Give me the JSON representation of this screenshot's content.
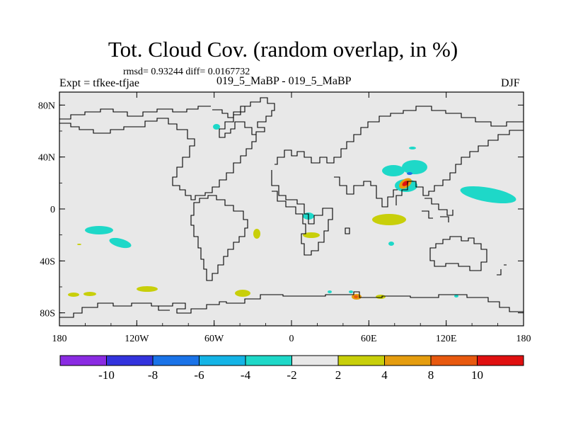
{
  "header": {
    "title": "Tot. Cloud Cov. (random overlap, in %)",
    "stats": "rmsd= 0.93244 diff= 0.0167732",
    "experiment": "Expt = tfkee-tfjae",
    "cases": "019_5_MaBP - 019_5_MaBP",
    "season": "DJF"
  },
  "map": {
    "projection": "cylindrical equidistant",
    "lon_range": [
      -180,
      180
    ],
    "lat_range": [
      -90,
      90
    ],
    "background_color": "#e8e8e8",
    "x_ticks": [
      {
        "lon": -180,
        "label": "180"
      },
      {
        "lon": -120,
        "label": "120W"
      },
      {
        "lon": -60,
        "label": "60W"
      },
      {
        "lon": 0,
        "label": "0"
      },
      {
        "lon": 60,
        "label": "60E"
      },
      {
        "lon": 120,
        "label": "120E"
      },
      {
        "lon": 180,
        "label": "180"
      }
    ],
    "y_ticks": [
      {
        "lat": 80,
        "label": "80N"
      },
      {
        "lat": 40,
        "label": "40N"
      },
      {
        "lat": 0,
        "label": "0"
      },
      {
        "lat": -40,
        "label": "40S"
      },
      {
        "lat": -80,
        "label": "80S"
      }
    ]
  },
  "colorbar": {
    "colors": [
      "#8a2be2",
      "#3333dd",
      "#1a73e8",
      "#14b4e6",
      "#1ed8c8",
      "#e8e8e8",
      "#c8cf0a",
      "#e59d0f",
      "#e8590f",
      "#e01010"
    ],
    "labels": [
      "-10",
      "-8",
      "-6",
      "-4",
      "-2",
      "2",
      "4",
      "8",
      "10"
    ]
  },
  "anomalies": [
    {
      "name": "arctic-canada",
      "lon": -97,
      "lat": 64,
      "value": "-4"
    },
    {
      "name": "north-pacific-east",
      "lon": -152,
      "lat": -16,
      "value": "-4"
    },
    {
      "name": "south-pacific-east",
      "lon": -132,
      "lat": -28,
      "value": "-4"
    },
    {
      "name": "sw-atlantic",
      "lon": -33,
      "lat": -19,
      "value": "4"
    },
    {
      "name": "sw-atlantic-small",
      "lon": -172,
      "lat": -27,
      "value": "4"
    },
    {
      "name": "east-africa-coast",
      "lon": 14,
      "lat": -20,
      "value": "4"
    },
    {
      "name": "central-africa",
      "lon": 12,
      "lat": -5,
      "value": "-4"
    },
    {
      "name": "indian-ocean",
      "lon": 70,
      "lat": -7,
      "value": "4"
    },
    {
      "name": "tibet-west",
      "lon": 75,
      "lat": 30,
      "value": "-4"
    },
    {
      "name": "tibet-north",
      "lon": 90,
      "lat": 34,
      "value": "-4"
    },
    {
      "name": "tibet-peak",
      "lon": 89,
      "lat": 19,
      "value": "10"
    },
    {
      "name": "pacific-nw",
      "lon": 151,
      "lat": 13,
      "value": "-4"
    },
    {
      "name": "north-china",
      "lon": 93,
      "lat": 48,
      "value": "-4"
    },
    {
      "name": "southern-ocean-1",
      "lon": -170,
      "lat": -66,
      "value": "4"
    },
    {
      "name": "southern-ocean-2",
      "lon": -112,
      "lat": -61,
      "value": "4"
    },
    {
      "name": "southern-ocean-3",
      "lon": -38,
      "lat": -63,
      "value": "4"
    },
    {
      "name": "antarctic-1",
      "lon": 51,
      "lat": -67,
      "value": "8"
    },
    {
      "name": "antarctic-2",
      "lon": 60,
      "lat": -67,
      "value": "4"
    },
    {
      "name": "antarctic-cyan",
      "lon": 49,
      "lat": -65,
      "value": "-4"
    }
  ]
}
